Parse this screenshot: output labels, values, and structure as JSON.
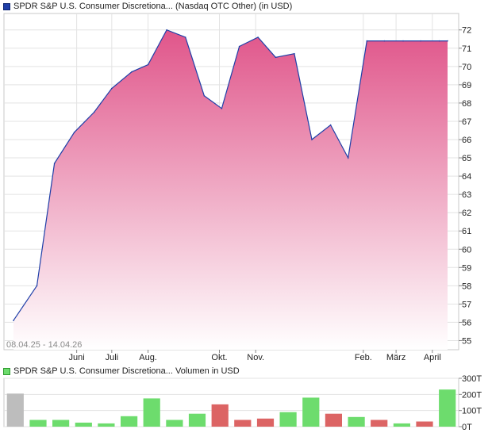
{
  "chart_data": [
    {
      "type": "area",
      "title": "SPDR S&P U.S. Consumer Discretiona... (Nasdaq OTC Other) (in USD)",
      "date_range": "08.04.25 - 14.04.26",
      "colors": {
        "line": "#1f3fa8",
        "fill_top": "#e0558a",
        "fill_bottom": "#ffffff",
        "legend": "#1f3fa8",
        "grid": "#e3e3e3"
      },
      "x_ticks": [
        "Juni",
        "Juli",
        "Aug.",
        "Okt.",
        "Nov.",
        "Feb.",
        "März",
        "April"
      ],
      "x_tick_dates": [
        "2025-06-01",
        "2025-07-01",
        "2025-08-01",
        "2025-10-01",
        "2025-11-01",
        "2026-02-01",
        "2026-03-01",
        "2026-04-01"
      ],
      "y_ticks": [
        55,
        56,
        57,
        58,
        59,
        60,
        61,
        62,
        63,
        64,
        65,
        66,
        67,
        68,
        69,
        70,
        71,
        72
      ],
      "ylim": [
        54.5,
        72.9
      ],
      "grid": true,
      "series": [
        {
          "x": [
            "2025-04-08",
            "2025-04-28",
            "2025-05-13",
            "2025-05-30",
            "2025-06-16",
            "2025-07-01",
            "2025-07-18",
            "2025-08-01",
            "2025-08-17",
            "2025-09-02",
            "2025-09-18",
            "2025-10-03",
            "2025-10-18",
            "2025-11-03",
            "2025-11-18",
            "2025-12-04",
            "2025-12-19",
            "2026-01-04",
            "2026-01-19",
            "2026-02-04",
            "2026-02-19",
            "2026-03-07",
            "2026-03-22",
            "2026-04-07",
            "2026-04-14"
          ],
          "values": [
            56.1,
            58.0,
            64.7,
            66.4,
            67.5,
            68.8,
            69.7,
            70.1,
            72.0,
            71.6,
            68.4,
            67.7,
            71.1,
            71.6,
            70.5,
            70.7,
            66.0,
            66.8,
            65.0,
            71.4,
            71.4,
            71.4,
            71.4,
            71.4,
            71.4
          ]
        }
      ]
    },
    {
      "type": "bar",
      "title": "SPDR S&P U.S. Consumer Discretiona... Volumen in USD",
      "y_ticks": [
        "300T",
        "200T",
        "100T",
        "0T"
      ],
      "y_tick_values": [
        300,
        200,
        100,
        0
      ],
      "ylim": [
        0,
        300
      ],
      "colors": {
        "up": "#6ddc6d",
        "down": "#dc6464",
        "neutral": "#bdbdbd",
        "legend": "#6ddc6d"
      },
      "values": [
        205,
        42,
        42,
        25,
        20,
        65,
        175,
        42,
        80,
        138,
        42,
        50,
        90,
        180,
        80,
        60,
        42,
        20,
        32,
        230
      ],
      "directions": [
        "neutral",
        "up",
        "up",
        "up",
        "up",
        "up",
        "up",
        "up",
        "up",
        "down",
        "down",
        "down",
        "up",
        "up",
        "down",
        "up",
        "down",
        "up",
        "down",
        "up"
      ]
    }
  ]
}
